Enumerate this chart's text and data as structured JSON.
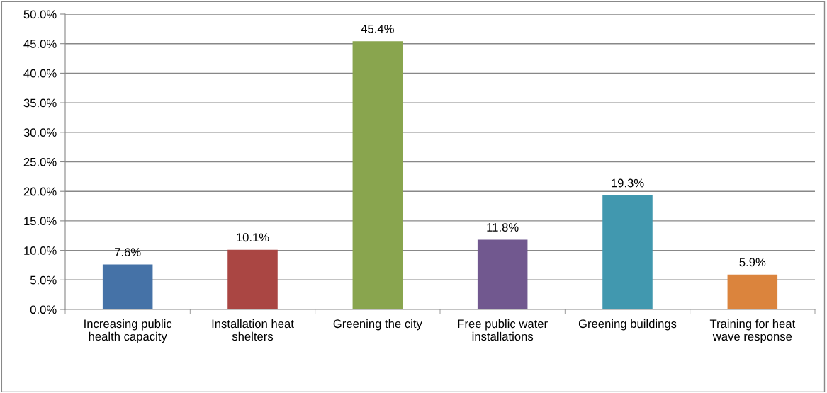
{
  "chart_data": {
    "type": "bar",
    "categories": [
      "Increasing public\nhealth capacity",
      "Installation heat\nshelters",
      "Greening the city",
      "Free public water\ninstallations",
      "Greening buildings",
      "Training for heat\nwave response"
    ],
    "values": [
      7.6,
      10.1,
      45.4,
      11.8,
      19.3,
      5.9
    ],
    "colors": [
      "#4572a7",
      "#aa4643",
      "#89a54e",
      "#71588f",
      "#4198af",
      "#db843d"
    ],
    "value_labels": [
      "7.6%",
      "10.1%",
      "45.4%",
      "11.8%",
      "19.3%",
      "5.9%"
    ],
    "ylim": [
      0,
      50
    ],
    "yticks": [
      {
        "value": 0,
        "label": "0.0%"
      },
      {
        "value": 5,
        "label": "5.0%"
      },
      {
        "value": 10,
        "label": "10.0%"
      },
      {
        "value": 15,
        "label": "15.0%"
      },
      {
        "value": 20,
        "label": "20.0%"
      },
      {
        "value": 25,
        "label": "25.0%"
      },
      {
        "value": 30,
        "label": "30.0%"
      },
      {
        "value": 35,
        "label": "35.0%"
      },
      {
        "value": 40,
        "label": "40.0%"
      },
      {
        "value": 45,
        "label": "45.0%"
      },
      {
        "value": 50,
        "label": "50.0%"
      }
    ],
    "grid": "y",
    "legend": false
  }
}
